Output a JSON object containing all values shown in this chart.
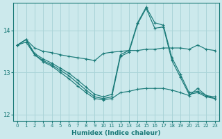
{
  "xlabel": "Humidex (Indice chaleur)",
  "bg_color": "#cce9ec",
  "grid_color": "#aad4d8",
  "line_color": "#1a7a78",
  "xlim": [
    -0.5,
    23.5
  ],
  "ylim": [
    11.85,
    14.65
  ],
  "yticks": [
    12,
    13,
    14
  ],
  "xticks": [
    0,
    1,
    2,
    3,
    4,
    5,
    6,
    7,
    8,
    9,
    10,
    11,
    12,
    13,
    14,
    15,
    16,
    17,
    18,
    19,
    20,
    21,
    22,
    23
  ],
  "lines": [
    {
      "x": [
        0,
        1,
        2,
        3,
        4,
        5,
        6,
        7,
        8,
        9,
        10,
        11,
        12,
        13,
        14,
        15,
        16,
        17,
        18,
        19,
        20,
        21,
        22,
        23
      ],
      "y": [
        13.65,
        13.78,
        13.58,
        13.5,
        13.47,
        13.42,
        13.38,
        13.35,
        13.32,
        13.28,
        13.45,
        13.48,
        13.5,
        13.52,
        13.52,
        13.55,
        13.55,
        13.58,
        13.58,
        13.58,
        13.55,
        13.65,
        13.55,
        13.52
      ]
    },
    {
      "x": [
        0,
        1,
        2,
        3,
        4,
        5,
        6,
        7,
        8,
        9,
        10,
        11,
        12,
        13,
        14,
        15,
        16,
        17,
        18,
        19,
        20,
        21,
        22,
        23
      ],
      "y": [
        13.65,
        13.78,
        13.45,
        13.32,
        13.22,
        13.1,
        12.98,
        12.82,
        12.65,
        12.48,
        12.42,
        12.48,
        13.42,
        13.52,
        14.18,
        14.55,
        14.18,
        14.12,
        13.35,
        12.95,
        12.52,
        12.55,
        12.45,
        12.42
      ]
    },
    {
      "x": [
        0,
        1,
        2,
        3,
        4,
        5,
        6,
        7,
        8,
        9,
        10,
        11,
        12,
        13,
        14,
        15,
        16,
        17,
        18,
        19,
        20,
        21,
        22,
        23
      ],
      "y": [
        13.65,
        13.78,
        13.42,
        13.28,
        13.18,
        13.05,
        12.92,
        12.75,
        12.58,
        12.42,
        12.38,
        12.42,
        13.38,
        13.48,
        14.15,
        14.52,
        14.05,
        14.08,
        13.28,
        12.88,
        12.48,
        12.52,
        12.42,
        12.38
      ]
    },
    {
      "x": [
        0,
        1,
        2,
        3,
        4,
        5,
        6,
        7,
        8,
        9,
        10,
        11,
        12,
        13,
        14,
        15,
        16,
        17,
        18,
        19,
        20,
        21,
        22,
        23
      ],
      "y": [
        13.65,
        13.72,
        13.42,
        13.25,
        13.15,
        13.0,
        12.85,
        12.68,
        12.52,
        12.38,
        12.35,
        12.38,
        12.52,
        12.55,
        12.6,
        12.62,
        12.62,
        12.62,
        12.58,
        12.52,
        12.45,
        12.62,
        12.45,
        12.38
      ]
    }
  ]
}
